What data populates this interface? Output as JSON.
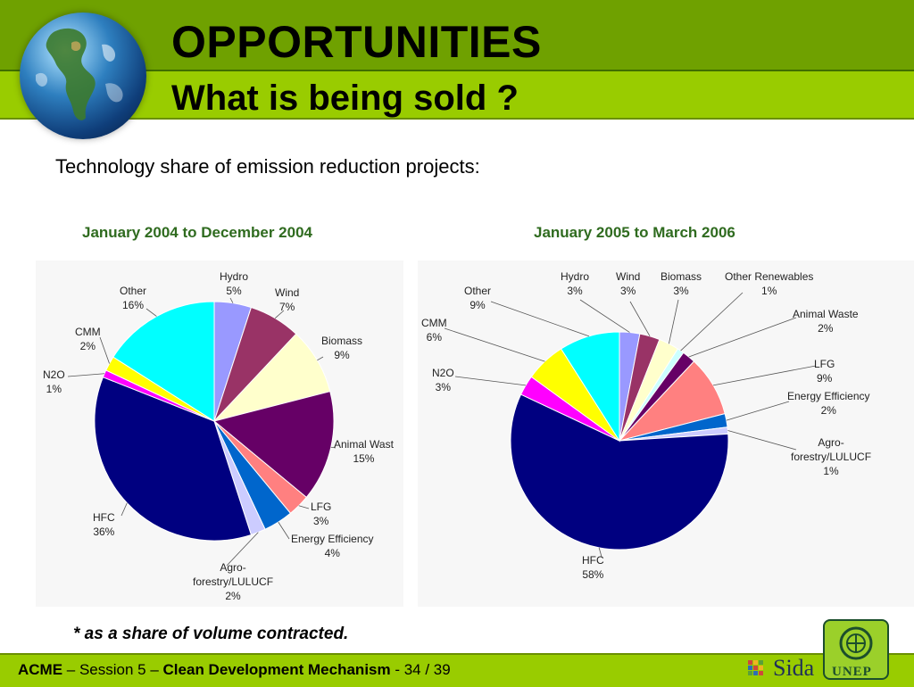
{
  "slide": {
    "title": "OPPORTUNITIES",
    "subtitle": "What is being sold ?",
    "intro": "Technology share of emission reduction projects:",
    "footnote": "* as a share of volume contracted.",
    "footer": {
      "acme": "ACME",
      "sep1": " – Session 5 – ",
      "cdm": "Clean Development Mechanism",
      "pages": " - 34 / 39"
    },
    "logos": {
      "sida": "Sida",
      "unep": "UNEP"
    }
  },
  "colors": {
    "band_dark": "#6fa100",
    "band_light": "#99cc00",
    "chart_title": "#2f6b1f"
  },
  "chart_data": [
    {
      "type": "pie",
      "title": "January 2004 to December 2004",
      "slices": [
        {
          "label": "Hydro",
          "value": 5,
          "color": "#9999ff"
        },
        {
          "label": "Wind",
          "value": 7,
          "color": "#993366"
        },
        {
          "label": "Biomass",
          "value": 9,
          "color": "#ffffcc"
        },
        {
          "label": "Animal Wast",
          "value": 15,
          "color": "#660066"
        },
        {
          "label": "LFG",
          "value": 3,
          "color": "#ff8080"
        },
        {
          "label": "Energy Efficiency",
          "value": 4,
          "color": "#0066cc"
        },
        {
          "label": "Agro-forestry/LULUCF",
          "value": 2,
          "color": "#ccccff"
        },
        {
          "label": "HFC",
          "value": 36,
          "color": "#000080"
        },
        {
          "label": "N2O",
          "value": 1,
          "color": "#ff00ff"
        },
        {
          "label": "CMM",
          "value": 2,
          "color": "#ffff00"
        },
        {
          "label": "Other",
          "value": 16,
          "color": "#00ffff"
        }
      ],
      "labels_display": [
        {
          "l1": "Hydro",
          "l2": "5%"
        },
        {
          "l1": "Wind",
          "l2": "7%"
        },
        {
          "l1": "Biomass",
          "l2": "9%"
        },
        {
          "l1": "Animal Wast",
          "l2": "15%"
        },
        {
          "l1": "LFG",
          "l2": "3%"
        },
        {
          "l1": "Energy Efficiency",
          "l2": "4%"
        },
        {
          "l1": "Agro-",
          "l2": "forestry/LULUCF",
          "l3": "2%"
        },
        {
          "l1": "HFC",
          "l2": "36%"
        },
        {
          "l1": "N2O",
          "l2": "1%"
        },
        {
          "l1": "CMM",
          "l2": "2%"
        },
        {
          "l1": "Other",
          "l2": "16%"
        }
      ]
    },
    {
      "type": "pie",
      "title": "January 2005 to March 2006",
      "slices": [
        {
          "label": "Hydro",
          "value": 3,
          "color": "#9999ff"
        },
        {
          "label": "Wind",
          "value": 3,
          "color": "#993366"
        },
        {
          "label": "Biomass",
          "value": 3,
          "color": "#ffffcc"
        },
        {
          "label": "Other Renewables",
          "value": 1,
          "color": "#ccffff"
        },
        {
          "label": "Animal Waste",
          "value": 2,
          "color": "#660066"
        },
        {
          "label": "LFG",
          "value": 9,
          "color": "#ff8080"
        },
        {
          "label": "Energy Efficiency",
          "value": 2,
          "color": "#0066cc"
        },
        {
          "label": "Agro-forestry/LULUCF",
          "value": 1,
          "color": "#ccccff"
        },
        {
          "label": "HFC",
          "value": 58,
          "color": "#000080"
        },
        {
          "label": "N2O",
          "value": 3,
          "color": "#ff00ff"
        },
        {
          "label": "CMM",
          "value": 6,
          "color": "#ffff00"
        },
        {
          "label": "Other",
          "value": 9,
          "color": "#00ffff"
        }
      ],
      "labels_display": [
        {
          "l1": "Hydro",
          "l2": "3%"
        },
        {
          "l1": "Wind",
          "l2": "3%"
        },
        {
          "l1": "Biomass",
          "l2": "3%"
        },
        {
          "l1": "Other Renewables",
          "l2": "1%"
        },
        {
          "l1": "Animal Waste",
          "l2": "2%"
        },
        {
          "l1": "LFG",
          "l2": "9%"
        },
        {
          "l1": "Energy Efficiency",
          "l2": "2%"
        },
        {
          "l1": "Agro-",
          "l2": "forestry/LULUCF",
          "l3": "1%"
        },
        {
          "l1": "HFC",
          "l2": "58%"
        },
        {
          "l1": "N2O",
          "l2": "3%"
        },
        {
          "l1": "CMM",
          "l2": "6%"
        },
        {
          "l1": "Other",
          "l2": "9%"
        }
      ]
    }
  ]
}
